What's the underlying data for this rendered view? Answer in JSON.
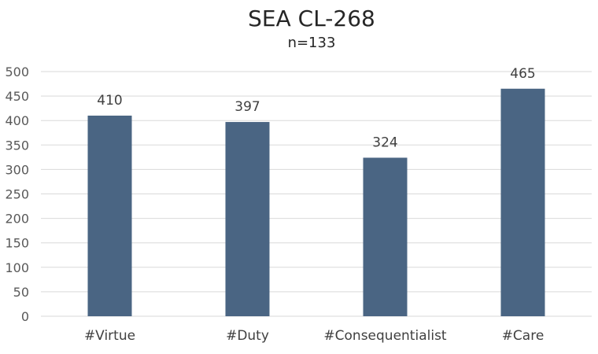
{
  "chart_data": {
    "type": "bar",
    "title": "SEA CL-268",
    "subtitle": "n=133",
    "categories": [
      "#Virtue",
      "#Duty",
      "#Consequentialist",
      "#Care"
    ],
    "values": [
      410,
      397,
      324,
      465
    ],
    "data_labels": [
      "410",
      "397",
      "324",
      "465"
    ],
    "ylim": [
      0,
      500
    ],
    "ytick_step": 50,
    "yticks": [
      "0",
      "50",
      "100",
      "150",
      "200",
      "250",
      "300",
      "350",
      "400",
      "450",
      "500"
    ],
    "grid": true,
    "legend": "none",
    "bar_color": "#4a6583"
  }
}
